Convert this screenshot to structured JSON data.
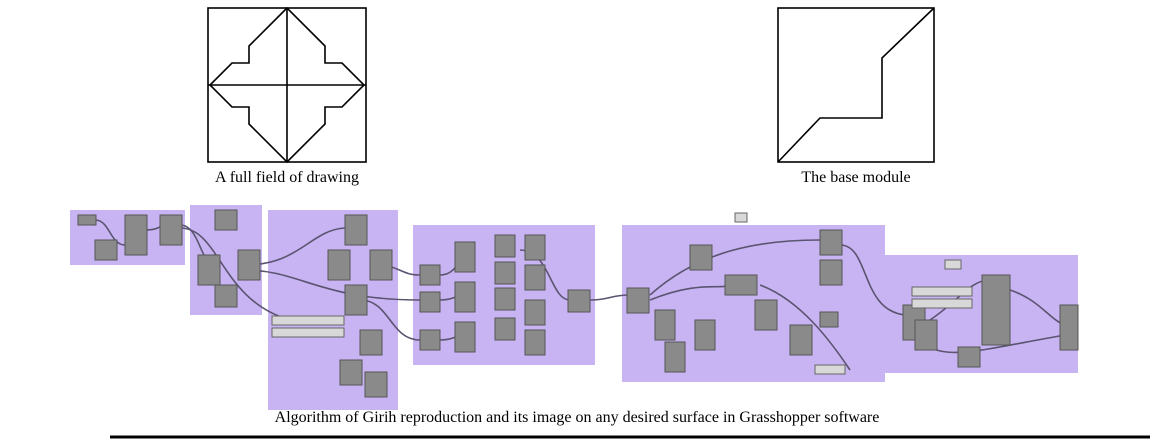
{
  "figures": [
    {
      "caption": "A full field of drawing"
    },
    {
      "caption": "The base module"
    }
  ],
  "caption": "Algorithm of Girih reproduction and its image on any desired surface in Grasshopper software"
}
